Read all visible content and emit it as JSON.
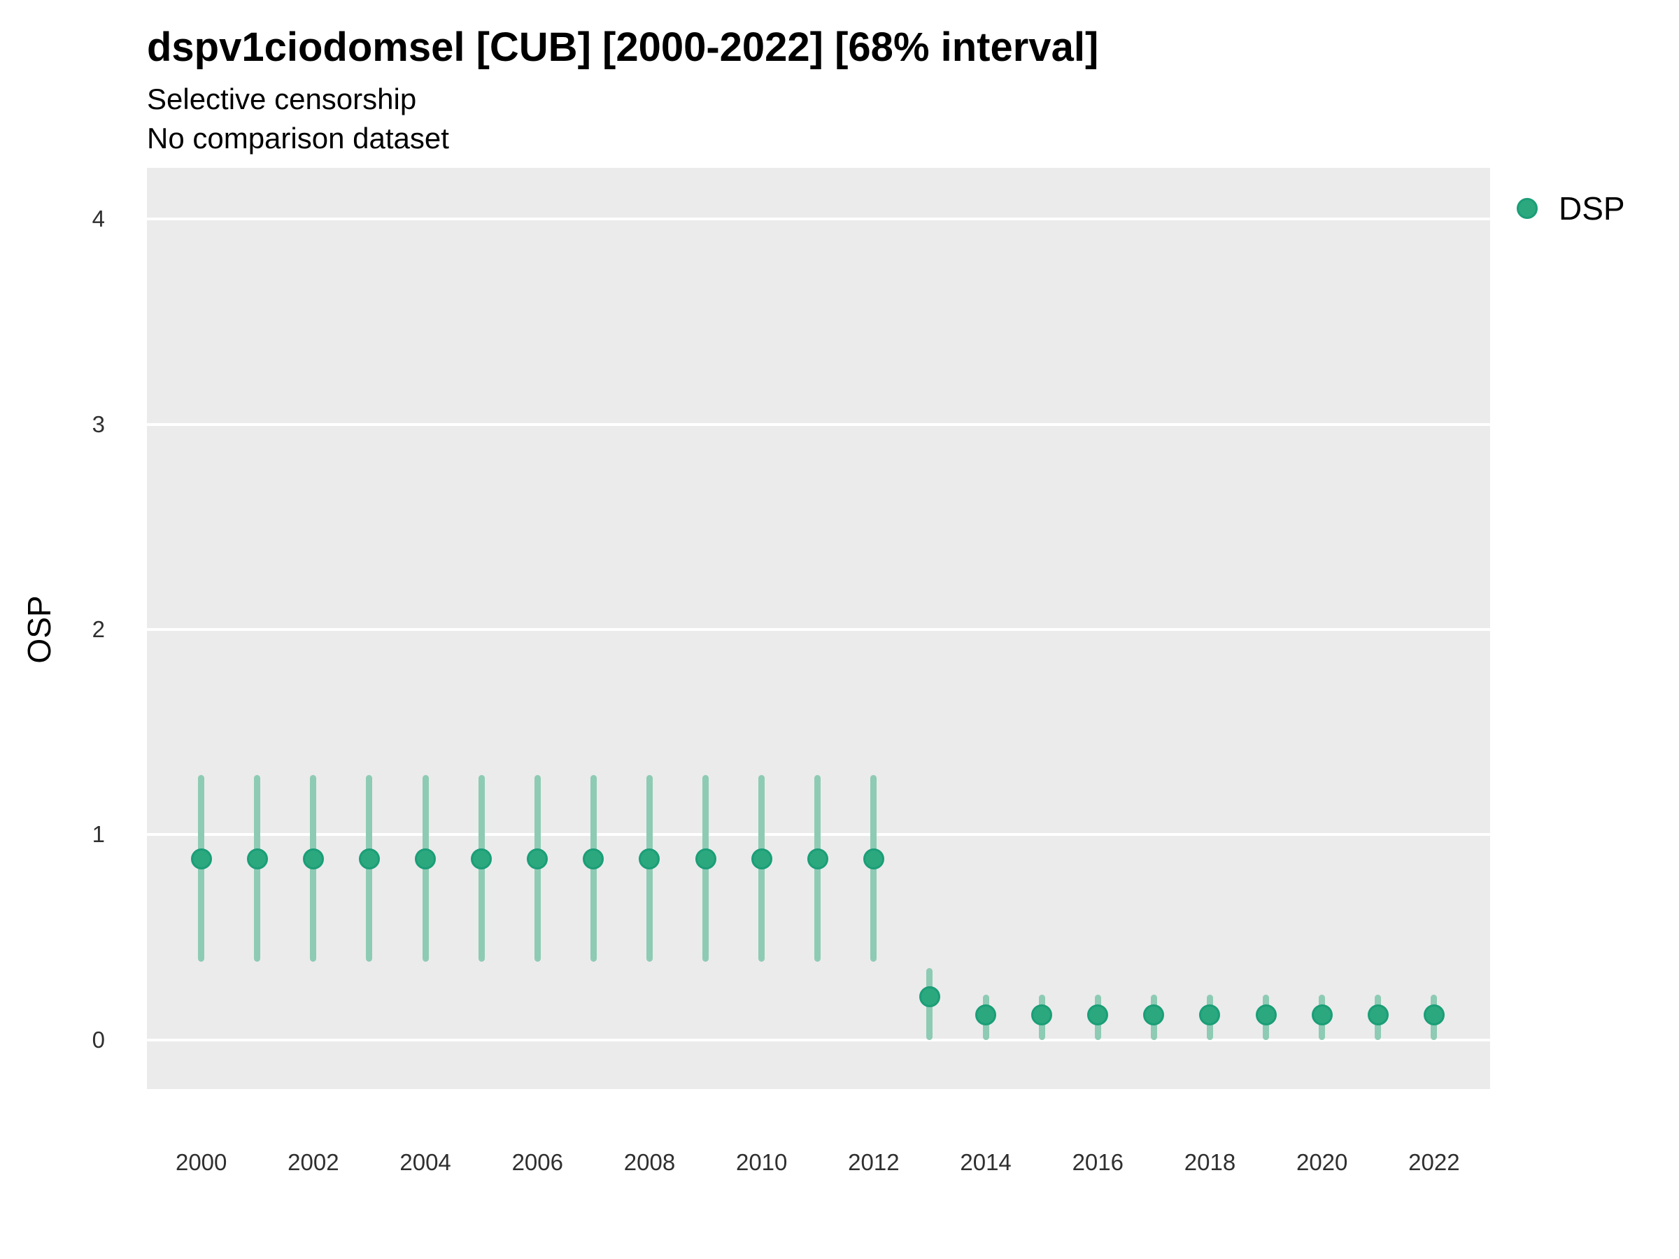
{
  "header": {
    "title": "dspv1ciodomsel [CUB] [2000-2022] [68% interval]",
    "subtitle1": "Selective censorship",
    "subtitle2": "No comparison dataset"
  },
  "legend": {
    "label": "DSP",
    "marker_icon": "circle-icon",
    "position": "right-top"
  },
  "colors": {
    "panel_background": "#ebebeb",
    "gridline": "#ffffff",
    "point_fill": "#2ca87e",
    "point_stroke": "#1b9e77",
    "error_bar": "#8ecbb4",
    "tick_text": "#2f2f2f",
    "text": "#000000"
  },
  "chart_data": {
    "type": "scatter",
    "title": "dspv1ciodomsel [CUB] [2000-2022] [68% interval]",
    "subtitle": "Selective censorship / No comparison dataset",
    "xlabel": "",
    "ylabel": "OSP",
    "interval_label": "68% interval",
    "grid": "horizontal-major-only",
    "legend_position": "right-top",
    "x_ticks": [
      2000,
      2002,
      2004,
      2006,
      2008,
      2010,
      2012,
      2014,
      2016,
      2018,
      2020,
      2022
    ],
    "y_ticks": [
      0,
      1,
      2,
      3,
      4
    ],
    "xlim": [
      1999.03,
      2023.0
    ],
    "ylim": [
      -0.24,
      4.25
    ],
    "series": [
      {
        "name": "DSP",
        "points": [
          {
            "x": 2000,
            "y": 0.88,
            "lo": 0.38,
            "hi": 1.29
          },
          {
            "x": 2001,
            "y": 0.88,
            "lo": 0.38,
            "hi": 1.29
          },
          {
            "x": 2002,
            "y": 0.88,
            "lo": 0.38,
            "hi": 1.29
          },
          {
            "x": 2003,
            "y": 0.88,
            "lo": 0.38,
            "hi": 1.29
          },
          {
            "x": 2004,
            "y": 0.88,
            "lo": 0.38,
            "hi": 1.29
          },
          {
            "x": 2005,
            "y": 0.88,
            "lo": 0.38,
            "hi": 1.29
          },
          {
            "x": 2006,
            "y": 0.88,
            "lo": 0.38,
            "hi": 1.29
          },
          {
            "x": 2007,
            "y": 0.88,
            "lo": 0.38,
            "hi": 1.29
          },
          {
            "x": 2008,
            "y": 0.88,
            "lo": 0.38,
            "hi": 1.29
          },
          {
            "x": 2009,
            "y": 0.88,
            "lo": 0.38,
            "hi": 1.29
          },
          {
            "x": 2010,
            "y": 0.88,
            "lo": 0.38,
            "hi": 1.29
          },
          {
            "x": 2011,
            "y": 0.88,
            "lo": 0.38,
            "hi": 1.29
          },
          {
            "x": 2012,
            "y": 0.88,
            "lo": 0.38,
            "hi": 1.29
          },
          {
            "x": 2013,
            "y": 0.21,
            "lo": 0.0,
            "hi": 0.35
          },
          {
            "x": 2014,
            "y": 0.12,
            "lo": 0.0,
            "hi": 0.22
          },
          {
            "x": 2015,
            "y": 0.12,
            "lo": 0.0,
            "hi": 0.22
          },
          {
            "x": 2016,
            "y": 0.12,
            "lo": 0.0,
            "hi": 0.22
          },
          {
            "x": 2017,
            "y": 0.12,
            "lo": 0.0,
            "hi": 0.22
          },
          {
            "x": 2018,
            "y": 0.12,
            "lo": 0.0,
            "hi": 0.22
          },
          {
            "x": 2019,
            "y": 0.12,
            "lo": 0.0,
            "hi": 0.22
          },
          {
            "x": 2020,
            "y": 0.12,
            "lo": 0.0,
            "hi": 0.22
          },
          {
            "x": 2021,
            "y": 0.12,
            "lo": 0.0,
            "hi": 0.22
          },
          {
            "x": 2022,
            "y": 0.12,
            "lo": 0.0,
            "hi": 0.22
          }
        ]
      }
    ]
  }
}
